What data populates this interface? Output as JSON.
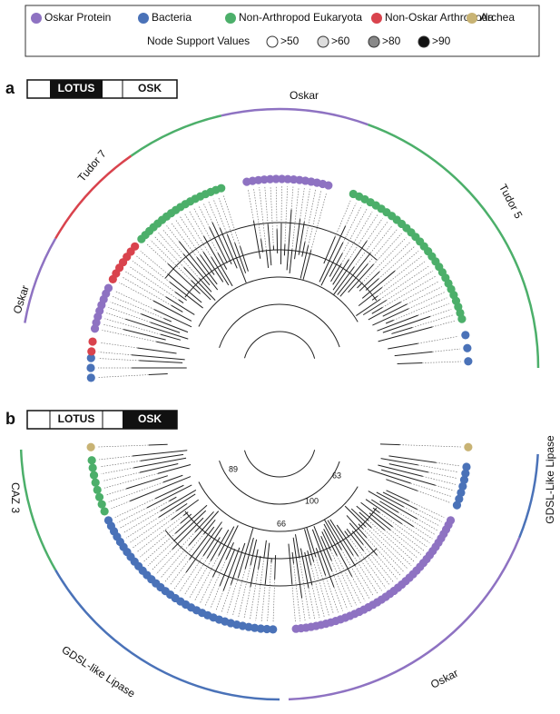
{
  "legend": {
    "entries": [
      {
        "name": "Oskar Protein",
        "color": "#8e72c2"
      },
      {
        "name": "Bacteria",
        "color": "#4a72b8"
      },
      {
        "name": "Non-Arthropod Eukaryota",
        "color": "#4caf6a"
      },
      {
        "name": "Non-Oskar Arthropoda",
        "color": "#d9434d"
      },
      {
        "name": "Archea",
        "color": "#c8b374"
      }
    ],
    "node_support": {
      "title": "Node Support Values",
      "levels": [
        ">50",
        ">60",
        ">80",
        ">90"
      ]
    }
  },
  "panel_a": {
    "label": "a",
    "domain": {
      "lotus": "LOTUS",
      "osk": "OSK"
    },
    "clades": [
      "Oskar",
      "Tudor 7",
      "Tudor 5",
      "Oskar"
    ]
  },
  "panel_b": {
    "label": "b",
    "domain": {
      "lotus": "LOTUS",
      "osk": "OSK"
    },
    "clades": [
      "CAZ 3",
      "GDSL-like Lipase",
      "Oskar",
      "GDSL-Like Lipase"
    ],
    "node_values": [
      89,
      100,
      63,
      66
    ]
  }
}
